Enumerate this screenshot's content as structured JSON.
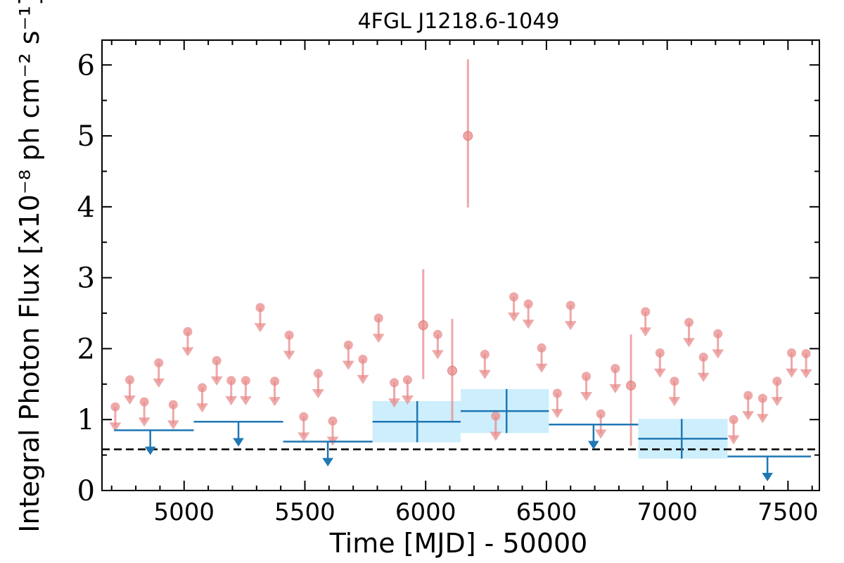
{
  "chart_data": {
    "type": "scatter",
    "title": "4FGL J1218.6-1049",
    "xlabel": "Time [MJD] - 50000",
    "ylabel": "Integral Photon Flux [x10⁻⁸ ph cm⁻² s⁻¹]",
    "xlim": [
      4660,
      7630
    ],
    "ylim": [
      0,
      6.35
    ],
    "x_ticks": [
      5000,
      5500,
      6000,
      6500,
      7000,
      7500
    ],
    "y_ticks": [
      0,
      1,
      2,
      3,
      4,
      5,
      6
    ],
    "reference_line": {
      "y": 0.58,
      "style": "dashed",
      "color": "#000000"
    },
    "colors": {
      "short": "#e88b8b",
      "long": "#1f77b4",
      "band": "#cdeefc"
    },
    "series": [
      {
        "role": "short-bin upper limits",
        "points": [
          {
            "x": 4715,
            "y": 1.18
          },
          {
            "x": 4775,
            "y": 1.56
          },
          {
            "x": 4835,
            "y": 1.25
          },
          {
            "x": 4895,
            "y": 1.8
          },
          {
            "x": 4955,
            "y": 1.21
          },
          {
            "x": 5015,
            "y": 2.24
          },
          {
            "x": 5075,
            "y": 1.45
          },
          {
            "x": 5135,
            "y": 1.83
          },
          {
            "x": 5195,
            "y": 1.55
          },
          {
            "x": 5255,
            "y": 1.55
          },
          {
            "x": 5315,
            "y": 2.58
          },
          {
            "x": 5375,
            "y": 1.54
          },
          {
            "x": 5435,
            "y": 2.19
          },
          {
            "x": 5495,
            "y": 1.04
          },
          {
            "x": 5555,
            "y": 1.65
          },
          {
            "x": 5615,
            "y": 0.98
          },
          {
            "x": 5680,
            "y": 2.05
          },
          {
            "x": 5740,
            "y": 1.85
          },
          {
            "x": 5805,
            "y": 2.43
          },
          {
            "x": 5870,
            "y": 1.52
          },
          {
            "x": 5925,
            "y": 1.56
          },
          {
            "x": 6050,
            "y": 2.2
          },
          {
            "x": 6245,
            "y": 1.92
          },
          {
            "x": 6290,
            "y": 1.05
          },
          {
            "x": 6365,
            "y": 2.73
          },
          {
            "x": 6425,
            "y": 2.63
          },
          {
            "x": 6480,
            "y": 2.01
          },
          {
            "x": 6545,
            "y": 1.37
          },
          {
            "x": 6600,
            "y": 2.61
          },
          {
            "x": 6665,
            "y": 1.61
          },
          {
            "x": 6725,
            "y": 1.08
          },
          {
            "x": 6785,
            "y": 1.72
          },
          {
            "x": 6910,
            "y": 2.52
          },
          {
            "x": 6970,
            "y": 1.94
          },
          {
            "x": 7030,
            "y": 1.54
          },
          {
            "x": 7090,
            "y": 2.37
          },
          {
            "x": 7150,
            "y": 1.88
          },
          {
            "x": 7210,
            "y": 2.21
          },
          {
            "x": 7275,
            "y": 1.0
          },
          {
            "x": 7335,
            "y": 1.34
          },
          {
            "x": 7395,
            "y": 1.3
          },
          {
            "x": 7455,
            "y": 1.54
          },
          {
            "x": 7515,
            "y": 1.94
          },
          {
            "x": 7575,
            "y": 1.93
          }
        ]
      },
      {
        "role": "short-bin detections",
        "points": [
          {
            "x": 5990,
            "y": 2.33,
            "err_low": 0.76,
            "err_high": 0.79
          },
          {
            "x": 6110,
            "y": 1.69,
            "err_low": 0.71,
            "err_high": 0.73
          },
          {
            "x": 6175,
            "y": 5.0,
            "err_low": 1.01,
            "err_high": 1.08
          },
          {
            "x": 6850,
            "y": 1.48,
            "err_low": 0.85,
            "err_high": 0.72
          }
        ]
      },
      {
        "role": "long-bin upper limits",
        "points": [
          {
            "x": 4860,
            "x_low": 4710,
            "x_high": 5040,
            "y": 0.85
          },
          {
            "x": 5225,
            "x_low": 5040,
            "x_high": 5410,
            "y": 0.97
          },
          {
            "x": 5595,
            "x_low": 5410,
            "x_high": 5780,
            "y": 0.69
          },
          {
            "x": 6695,
            "x_low": 6510,
            "x_high": 6880,
            "y": 0.93
          },
          {
            "x": 7415,
            "x_low": 7250,
            "x_high": 7595,
            "y": 0.48
          }
        ]
      },
      {
        "role": "long-bin detections",
        "points": [
          {
            "x": 5965,
            "x_low": 5780,
            "x_high": 6145,
            "y": 0.97,
            "err_low": 0.29,
            "err_high": 0.29
          },
          {
            "x": 6335,
            "x_low": 6145,
            "x_high": 6510,
            "y": 1.12,
            "err_low": 0.31,
            "err_high": 0.31
          },
          {
            "x": 7060,
            "x_low": 6880,
            "x_high": 7250,
            "y": 0.73,
            "err_low": 0.28,
            "err_high": 0.28
          }
        ]
      }
    ]
  }
}
